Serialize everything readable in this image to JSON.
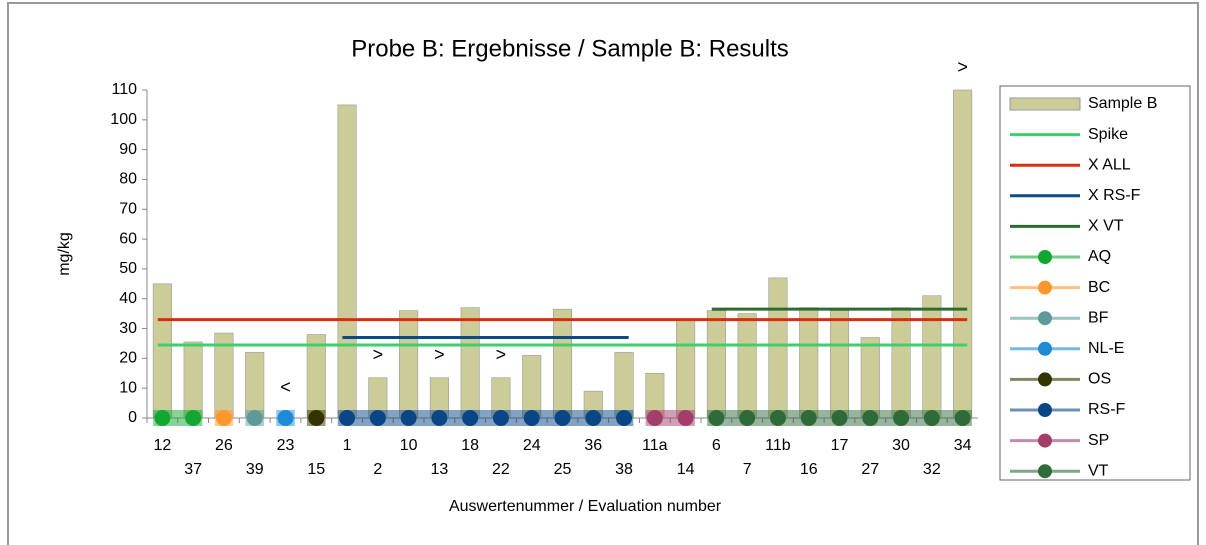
{
  "chart_data": {
    "type": "bar",
    "title": "Probe B: Ergebnisse / Sample B: Results",
    "y_label": "mg/kg",
    "x_label": "Auswertenummer / Evaluation number",
    "categories": [
      "12",
      "37",
      "26",
      "39",
      "23",
      "15",
      "1",
      "2",
      "10",
      "13",
      "18",
      "22",
      "24",
      "25",
      "36",
      "38",
      "11a",
      "14",
      "6",
      "7",
      "11b",
      "16",
      "17",
      "27",
      "30",
      "32",
      "34"
    ],
    "series": [
      {
        "name": "Sample B",
        "color": "#cccc99",
        "values": [
          45,
          25.5,
          28.5,
          22,
          null,
          28,
          105,
          13.5,
          36,
          13.5,
          37,
          13.5,
          21,
          36.5,
          9,
          22,
          15,
          33,
          36,
          35,
          47,
          37,
          36,
          27,
          37,
          41,
          110
        ]
      }
    ],
    "lines": [
      {
        "name": "Spike",
        "color": "#3fcf6a",
        "value": 24.5,
        "from": "12",
        "to": "34"
      },
      {
        "name": "X ALL",
        "color": "#d62e10",
        "value": 33,
        "from": "12",
        "to": "34"
      },
      {
        "name": "X RS-F",
        "color": "#0a4a86",
        "value": 27,
        "from": "1",
        "to": "38"
      },
      {
        "name": "X VT",
        "color": "#2e6b30",
        "value": 36.5,
        "from": "6",
        "to": "34"
      }
    ],
    "groups": [
      {
        "name": "AQ",
        "color": "#10a830"
      },
      {
        "name": "BC",
        "color": "#ff972f"
      },
      {
        "name": "BF",
        "color": "#5f9a9a"
      },
      {
        "name": "NL-E",
        "color": "#1e8ad6"
      },
      {
        "name": "OS",
        "color": "#333300"
      },
      {
        "name": "RS-F",
        "color": "#0a4586"
      },
      {
        "name": "SP",
        "color": "#a33e6b"
      },
      {
        "name": "VT",
        "color": "#2f6a3b"
      }
    ],
    "category_groups": [
      "AQ",
      "AQ",
      "BC",
      "BF",
      "NL-E",
      "OS",
      "RS-F",
      "RS-F",
      "RS-F",
      "RS-F",
      "RS-F",
      "RS-F",
      "RS-F",
      "RS-F",
      "RS-F",
      "RS-F",
      "SP",
      "SP",
      "VT",
      "VT",
      "VT",
      "VT",
      "VT",
      "VT",
      "VT",
      "VT",
      "VT"
    ],
    "annotations": [
      {
        "text": "<",
        "category": "23"
      },
      {
        "text": ">",
        "category": "2"
      },
      {
        "text": ">",
        "category": "13"
      },
      {
        "text": ">",
        "category": "22"
      },
      {
        "text": ">",
        "category": "34"
      }
    ],
    "ylim": [
      0,
      110
    ],
    "yticks": [
      0,
      10,
      20,
      30,
      40,
      50,
      60,
      70,
      80,
      90,
      100,
      110
    ]
  }
}
